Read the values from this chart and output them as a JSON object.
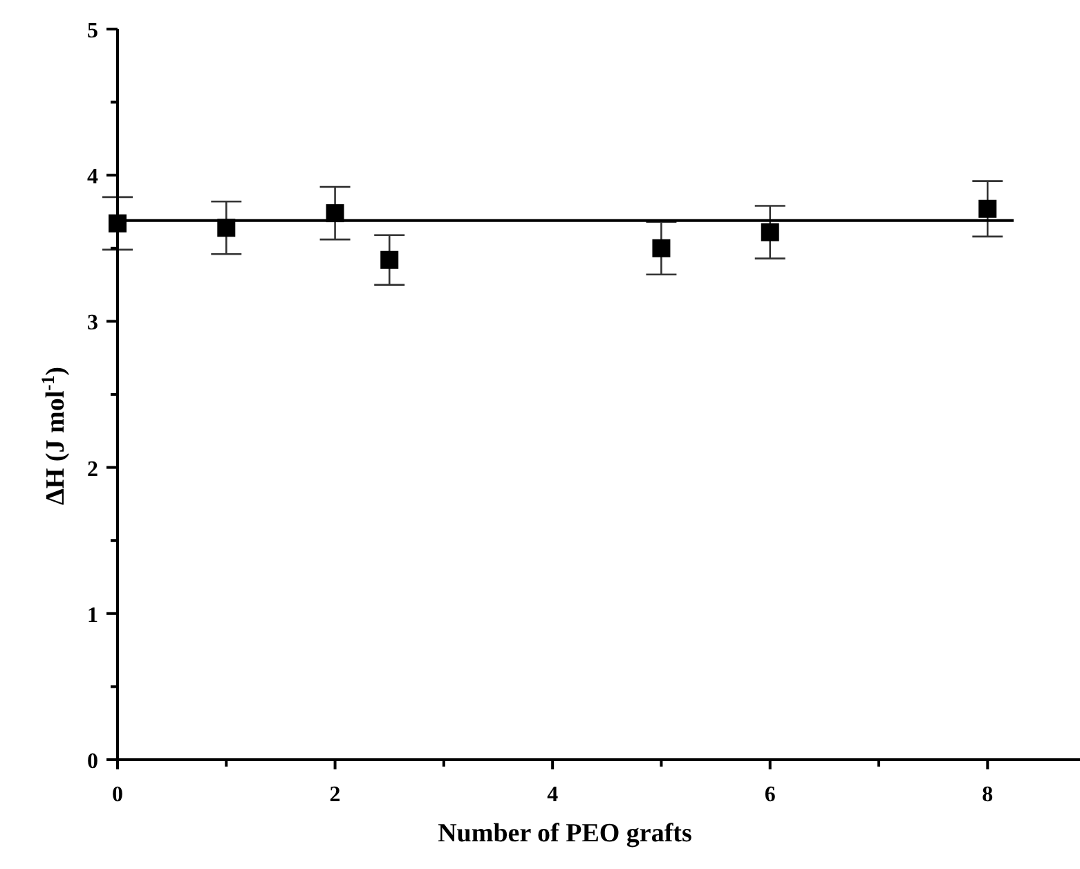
{
  "chart_data": {
    "type": "scatter",
    "xlabel": "Number of PEO grafts",
    "ylabel": "ΔH (J mol$^{-1}$)",
    "xlim": [
      0,
      8.85
    ],
    "ylim": [
      0,
      5
    ],
    "xticks": [
      0,
      {
        "value": 1,
        "label": null
      },
      2,
      {
        "value": 3,
        "label": null
      },
      4,
      {
        "value": 5,
        "label": null
      },
      6,
      {
        "value": 7,
        "label": null
      },
      8
    ],
    "yticks": [
      0,
      {
        "value": 0.5,
        "label": null
      },
      1,
      {
        "value": 1.5,
        "label": null
      },
      2,
      {
        "value": 2.5,
        "label": null
      },
      3,
      {
        "value": 3.5,
        "label": null
      },
      4,
      {
        "value": 4.5,
        "label": null
      },
      5
    ],
    "grid": false,
    "series": [
      {
        "marker": "square",
        "color": "#000000",
        "x": [
          0,
          1,
          2,
          2.5,
          5,
          6,
          8
        ],
        "values": [
          3.67,
          3.64,
          3.74,
          3.42,
          3.5,
          3.61,
          3.77
        ],
        "errors": [
          0.18,
          0.18,
          0.18,
          0.17,
          0.18,
          0.18,
          0.19
        ]
      },
      {
        "type": "line",
        "marker": "none",
        "color": "#000000",
        "x": [
          0,
          8.24
        ],
        "values": [
          3.69,
          3.69
        ]
      }
    ]
  }
}
